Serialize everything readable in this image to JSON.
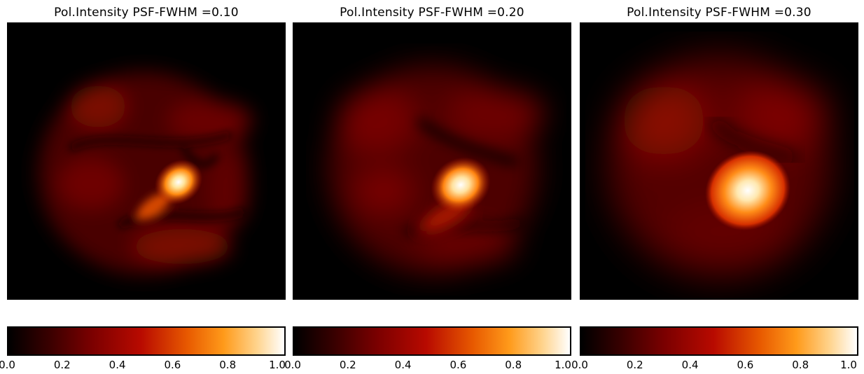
{
  "panels": [
    {
      "title": "Pol.Intensity PSF-FWHM =0.10",
      "fwhm": 0.1
    },
    {
      "title": "Pol.Intensity PSF-FWHM =0.20",
      "fwhm": 0.2
    },
    {
      "title": "Pol.Intensity PSF-FWHM =0.30",
      "fwhm": 0.3
    }
  ],
  "colorbar": {
    "ticks": [
      "0.0",
      "0.2",
      "0.4",
      "0.6",
      "0.8",
      "1.0"
    ],
    "range": [
      0.0,
      1.0
    ],
    "colormap": "black-red-orange-white (heat)"
  }
}
